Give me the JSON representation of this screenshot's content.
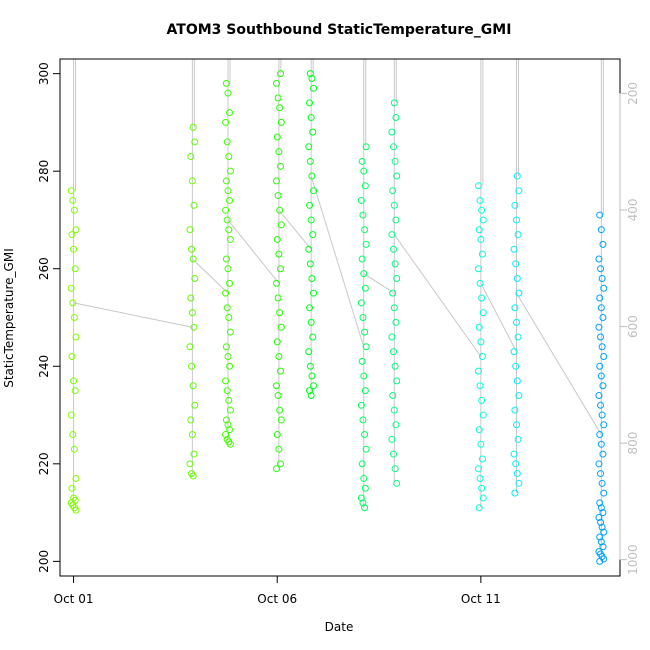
{
  "chart_data": {
    "type": "scatter",
    "title": "ATOM3 Southbound StaticTemperature_GMI",
    "xlabel": "Date",
    "ylabel": "StaticTemperature_GMI",
    "xlim": [
      "2016-09-30T16:00",
      "2016-10-14T10:00"
    ],
    "ylim": [
      197,
      303
    ],
    "x_ticks": [
      {
        "date": "2016-10-01",
        "label": "Oct 01"
      },
      {
        "date": "2016-10-06",
        "label": "Oct 06"
      },
      {
        "date": "2016-10-11",
        "label": "Oct 11"
      }
    ],
    "y_ticks": [
      200,
      220,
      240,
      260,
      280,
      300
    ],
    "y2_axis": {
      "label": "",
      "reversed": true,
      "ticks": [
        200,
        400,
        600,
        800,
        1000
      ],
      "ylim": [
        141,
        1028
      ]
    },
    "grid": false,
    "legend": "none",
    "colors": {
      "profile_line": "#c8c8c8",
      "axis": "#000000",
      "secondary_axis": "#bfbfbf"
    },
    "series": [
      {
        "date": "2016-10-01T00:00",
        "color": "#7fff00",
        "values": [
          276,
          274,
          272,
          268,
          267,
          264,
          260,
          256,
          253,
          250,
          246,
          242,
          237,
          235,
          230,
          226,
          223,
          217,
          215,
          213,
          212.5,
          212,
          211.5,
          211,
          210.5
        ]
      },
      {
        "date": "2016-10-03T22:00",
        "color": "#5fff00",
        "values": [
          289,
          286,
          283,
          278,
          273,
          268,
          264,
          262,
          258,
          254,
          251,
          248,
          244,
          240,
          236,
          232,
          229,
          226,
          222,
          220,
          218,
          217.5
        ]
      },
      {
        "date": "2016-10-04T19:00",
        "color": "#40ff00",
        "values": [
          298,
          296,
          292,
          290,
          286,
          283,
          280,
          278,
          276,
          274,
          272,
          270,
          268,
          266,
          262,
          260,
          257,
          255,
          252,
          250,
          247,
          244,
          242,
          240,
          237,
          235,
          233,
          231,
          229,
          228,
          227,
          226,
          225,
          224.5,
          224
        ]
      },
      {
        "date": "2016-10-06T01:00",
        "color": "#20ff00",
        "values": [
          300,
          298,
          295,
          293,
          290,
          287,
          284,
          281,
          278,
          275,
          272,
          269,
          266,
          263,
          260,
          257,
          254,
          251,
          248,
          245,
          242,
          239,
          236,
          234,
          231,
          229,
          226,
          223,
          220,
          219
        ]
      },
      {
        "date": "2016-10-06T20:00",
        "color": "#00ff20",
        "values": [
          300,
          299,
          297,
          294,
          291,
          288,
          285,
          282,
          279,
          276,
          273,
          270,
          267,
          264,
          261,
          258,
          255,
          252,
          249,
          246,
          243,
          240,
          238,
          236,
          235,
          234
        ]
      },
      {
        "date": "2016-10-08T03:00",
        "color": "#00ff60",
        "values": [
          285,
          282,
          280,
          277,
          274,
          271,
          268,
          265,
          262,
          259,
          256,
          253,
          250,
          247,
          244,
          241,
          238,
          235,
          232,
          229,
          226,
          223,
          220,
          217,
          215,
          213,
          212,
          211
        ]
      },
      {
        "date": "2016-10-08T21:00",
        "color": "#00ff80",
        "values": [
          294,
          291,
          288,
          285,
          282,
          279,
          276,
          273,
          270,
          267,
          264,
          261,
          258,
          255,
          252,
          249,
          246,
          243,
          240,
          237,
          234,
          231,
          228,
          225,
          222,
          219,
          216
        ]
      },
      {
        "date": "2016-10-11T00:00",
        "color": "#00ffe0",
        "values": [
          277,
          274,
          272,
          270,
          268,
          266,
          263,
          260,
          257,
          254,
          251,
          248,
          245,
          242,
          239,
          236,
          233,
          230,
          227,
          224,
          221,
          219,
          217,
          215,
          213,
          211
        ]
      },
      {
        "date": "2016-10-11T21:00",
        "color": "#00f0ff",
        "values": [
          279,
          276,
          273,
          270,
          267,
          264,
          261,
          258,
          255,
          252,
          249,
          246,
          243,
          240,
          237,
          234,
          231,
          228,
          225,
          222,
          220,
          218,
          216,
          214
        ]
      },
      {
        "date": "2016-10-13T23:00",
        "color": "#00a0ff",
        "values": [
          271,
          268,
          265,
          262,
          260,
          258,
          256,
          254,
          252,
          250,
          248,
          246,
          244,
          242,
          240,
          238,
          236,
          234,
          232,
          230,
          228,
          226,
          224,
          222,
          220,
          218,
          216,
          214,
          212,
          211,
          210,
          209,
          208,
          207,
          206,
          205,
          204,
          203,
          202,
          201.5,
          201,
          200.5,
          200
        ]
      }
    ]
  }
}
